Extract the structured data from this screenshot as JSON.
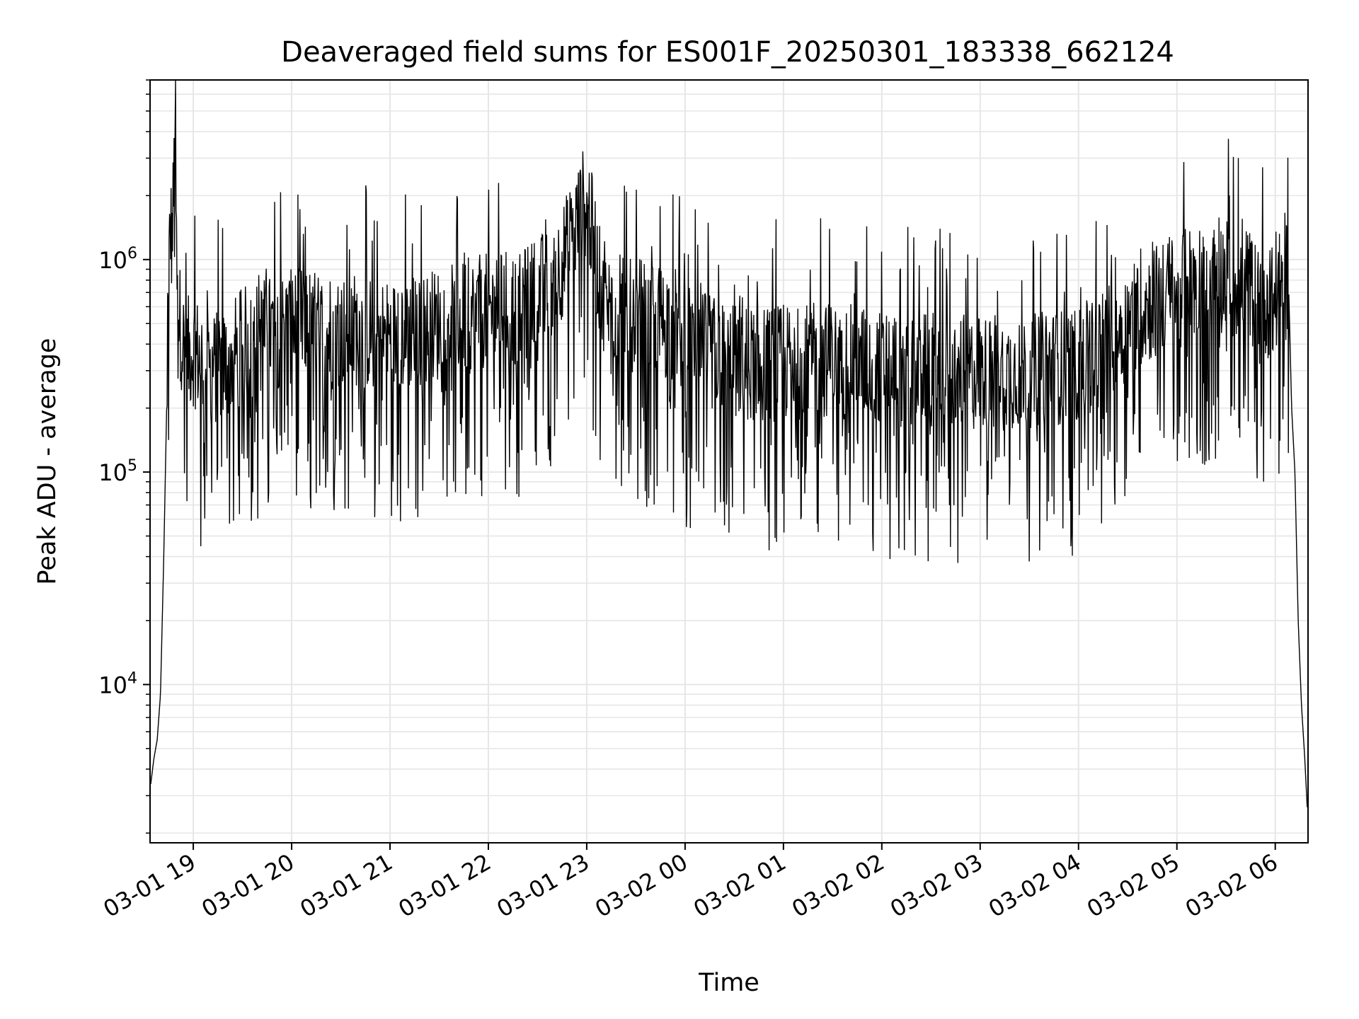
{
  "chart_data": {
    "type": "line",
    "title": "Deaveraged field sums for ES001F_20250301_183338_662124",
    "xlabel": "Time",
    "ylabel": "Peak ADU - average",
    "yscale": "log",
    "ylim": [
      1800,
      7000000
    ],
    "xlim": [
      "2025-03-01T18:33:38",
      "2025-03-02T06:20:00"
    ],
    "grid": true,
    "line_color": "#000000",
    "x_ticks": [
      {
        "value": "2025-03-01T19:00:00",
        "label": "03-01 19"
      },
      {
        "value": "2025-03-01T20:00:00",
        "label": "03-01 20"
      },
      {
        "value": "2025-03-01T21:00:00",
        "label": "03-01 21"
      },
      {
        "value": "2025-03-01T22:00:00",
        "label": "03-01 22"
      },
      {
        "value": "2025-03-01T23:00:00",
        "label": "03-01 23"
      },
      {
        "value": "2025-03-02T00:00:00",
        "label": "03-02 00"
      },
      {
        "value": "2025-03-02T01:00:00",
        "label": "03-02 01"
      },
      {
        "value": "2025-03-02T02:00:00",
        "label": "03-02 02"
      },
      {
        "value": "2025-03-02T03:00:00",
        "label": "03-02 03"
      },
      {
        "value": "2025-03-02T04:00:00",
        "label": "03-02 04"
      },
      {
        "value": "2025-03-02T05:00:00",
        "label": "03-02 05"
      },
      {
        "value": "2025-03-02T06:00:00",
        "label": "03-02 06"
      }
    ],
    "y_ticks": [
      {
        "value": 10000,
        "base": "10",
        "exp": "4"
      },
      {
        "value": 100000,
        "base": "10",
        "exp": "5"
      },
      {
        "value": 1000000,
        "base": "10",
        "exp": "6"
      }
    ],
    "series": [
      {
        "x": [
          "2025-03-01T18:33:38",
          "2025-03-01T18:36:00",
          "2025-03-01T18:38:00",
          "2025-03-01T18:40:00",
          "2025-03-01T18:42:00",
          "2025-03-01T18:44:00",
          "2025-03-01T18:45:00",
          "2025-03-01T18:46:00",
          "2025-03-01T18:47:00",
          "2025-03-01T18:48:00",
          "2025-03-01T18:49:00",
          "2025-03-01T18:50:00",
          "2025-03-01T18:52:00",
          "2025-03-01T18:55:00",
          "2025-03-01T19:00:00",
          "2025-03-01T19:10:00",
          "2025-03-01T19:20:00",
          "2025-03-01T19:30:00",
          "2025-03-01T19:45:00",
          "2025-03-01T20:00:00",
          "2025-03-01T20:10:00",
          "2025-03-01T20:20:00",
          "2025-03-01T20:40:00",
          "2025-03-01T21:00:00",
          "2025-03-01T21:20:00",
          "2025-03-01T21:40:00",
          "2025-03-01T22:00:00",
          "2025-03-01T22:20:00",
          "2025-03-01T22:40:00",
          "2025-03-01T22:50:00",
          "2025-03-01T23:00:00",
          "2025-03-01T23:10:00",
          "2025-03-01T23:30:00",
          "2025-03-01T23:50:00",
          "2025-03-02T00:10:00",
          "2025-03-02T00:30:00",
          "2025-03-02T00:50:00",
          "2025-03-02T01:10:00",
          "2025-03-02T01:30:00",
          "2025-03-02T02:00:00",
          "2025-03-02T02:30:00",
          "2025-03-02T03:00:00",
          "2025-03-02T03:30:00",
          "2025-03-02T04:00:00",
          "2025-03-02T04:20:00",
          "2025-03-02T04:40:00",
          "2025-03-02T05:00:00",
          "2025-03-02T05:10:00",
          "2025-03-02T05:30:00",
          "2025-03-02T05:50:00",
          "2025-03-02T06:00:00",
          "2025-03-02T06:05:00",
          "2025-03-02T06:08:00",
          "2025-03-02T06:10:00",
          "2025-03-02T06:12:00",
          "2025-03-02T06:14:00",
          "2025-03-02T06:16:00",
          "2025-03-02T06:18:00",
          "2025-03-02T06:20:00"
        ],
        "y": [
          3200,
          4500,
          5500,
          9000,
          40000,
          250000,
          800000,
          1500000,
          1200000,
          2000000,
          4500000,
          700000,
          500000,
          350000,
          380000,
          300000,
          320000,
          400000,
          450000,
          480000,
          500000,
          450000,
          470000,
          430000,
          470000,
          520000,
          580000,
          600000,
          800000,
          1200000,
          2000000,
          600000,
          550000,
          500000,
          380000,
          330000,
          320000,
          330000,
          340000,
          310000,
          300000,
          290000,
          300000,
          320000,
          420000,
          600000,
          700000,
          800000,
          850000,
          700000,
          600000,
          900000,
          850000,
          200000,
          100000,
          20000,
          8000,
          4500,
          2200
        ]
      }
    ]
  }
}
